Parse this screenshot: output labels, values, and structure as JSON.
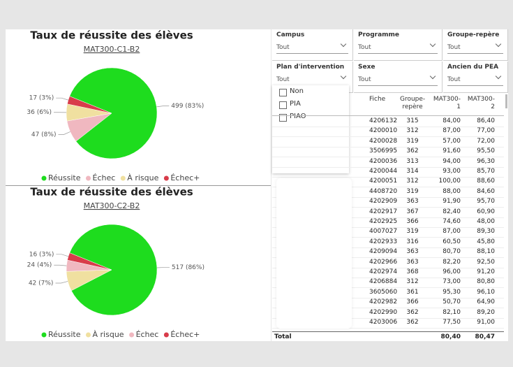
{
  "chart_data": [
    {
      "type": "pie",
      "title": "Taux de réussite des élèves",
      "subtitle": "MAT300-C1-B2",
      "categories": [
        "Réussite",
        "Échec",
        "À risque",
        "Échec+"
      ],
      "values": [
        499,
        47,
        36,
        17
      ],
      "value_labels": [
        "499 (83%)",
        "47 (8%)",
        "36 (6%)",
        "17 (3%)"
      ],
      "colors": [
        "#1edc1e",
        "#f0b8c0",
        "#f0e0a0",
        "#d83c4a"
      ],
      "legend": "bottom"
    },
    {
      "type": "pie",
      "title": "Taux de réussite des élèves",
      "subtitle": "MAT300-C2-B2",
      "categories": [
        "Réussite",
        "À risque",
        "Échec",
        "Échec+"
      ],
      "values": [
        517,
        42,
        24,
        16
      ],
      "value_labels": [
        "517 (86%)",
        "42 (7%)",
        "24 (4%)",
        "16 (3%)"
      ],
      "colors": [
        "#1edc1e",
        "#f0e0a0",
        "#f0b8c0",
        "#d83c4a"
      ],
      "legend": "bottom"
    }
  ],
  "slicers": [
    {
      "label": "Campus",
      "value": "Tout"
    },
    {
      "label": "Programme",
      "value": "Tout"
    },
    {
      "label": "Groupe-repère",
      "value": "Tout"
    },
    {
      "label": "Plan d'intervention",
      "value": "Tout",
      "options": [
        "Non",
        "PIA",
        "PIAO"
      ]
    },
    {
      "label": "Sexe",
      "value": "Tout"
    },
    {
      "label": "Ancien du PEA",
      "value": "Tout"
    }
  ],
  "table": {
    "columns": [
      "Fiche",
      "Groupe-repère",
      "MAT300-1",
      "MAT300-2"
    ],
    "rows": [
      [
        "4206132",
        "315",
        "84,00",
        "86,40"
      ],
      [
        "4200010",
        "312",
        "87,00",
        "77,00"
      ],
      [
        "4200028",
        "319",
        "57,00",
        "72,00"
      ],
      [
        "3506995",
        "362",
        "91,60",
        "95,50"
      ],
      [
        "4200036",
        "313",
        "94,00",
        "96,30"
      ],
      [
        "4200044",
        "314",
        "93,00",
        "85,70"
      ],
      [
        "4200051",
        "312",
        "100,00",
        "88,60"
      ],
      [
        "4408720",
        "319",
        "88,00",
        "84,60"
      ],
      [
        "4202909",
        "363",
        "91,90",
        "95,70"
      ],
      [
        "4202917",
        "367",
        "82,40",
        "60,90"
      ],
      [
        "4202925",
        "366",
        "74,60",
        "48,00"
      ],
      [
        "4007027",
        "319",
        "87,00",
        "89,30"
      ],
      [
        "4202933",
        "316",
        "60,50",
        "45,80"
      ],
      [
        "4209094",
        "363",
        "80,70",
        "88,10"
      ],
      [
        "4202966",
        "363",
        "82,20",
        "92,50"
      ],
      [
        "4202974",
        "368",
        "96,00",
        "91,20"
      ],
      [
        "4206884",
        "312",
        "73,00",
        "80,80"
      ],
      [
        "3605060",
        "361",
        "95,30",
        "96,10"
      ],
      [
        "4202982",
        "366",
        "50,70",
        "64,90"
      ],
      [
        "4202990",
        "362",
        "82,10",
        "89,20"
      ],
      [
        "4203006",
        "362",
        "77,50",
        "91,00"
      ]
    ],
    "total": [
      "Total",
      "80,40",
      "80,47"
    ]
  }
}
